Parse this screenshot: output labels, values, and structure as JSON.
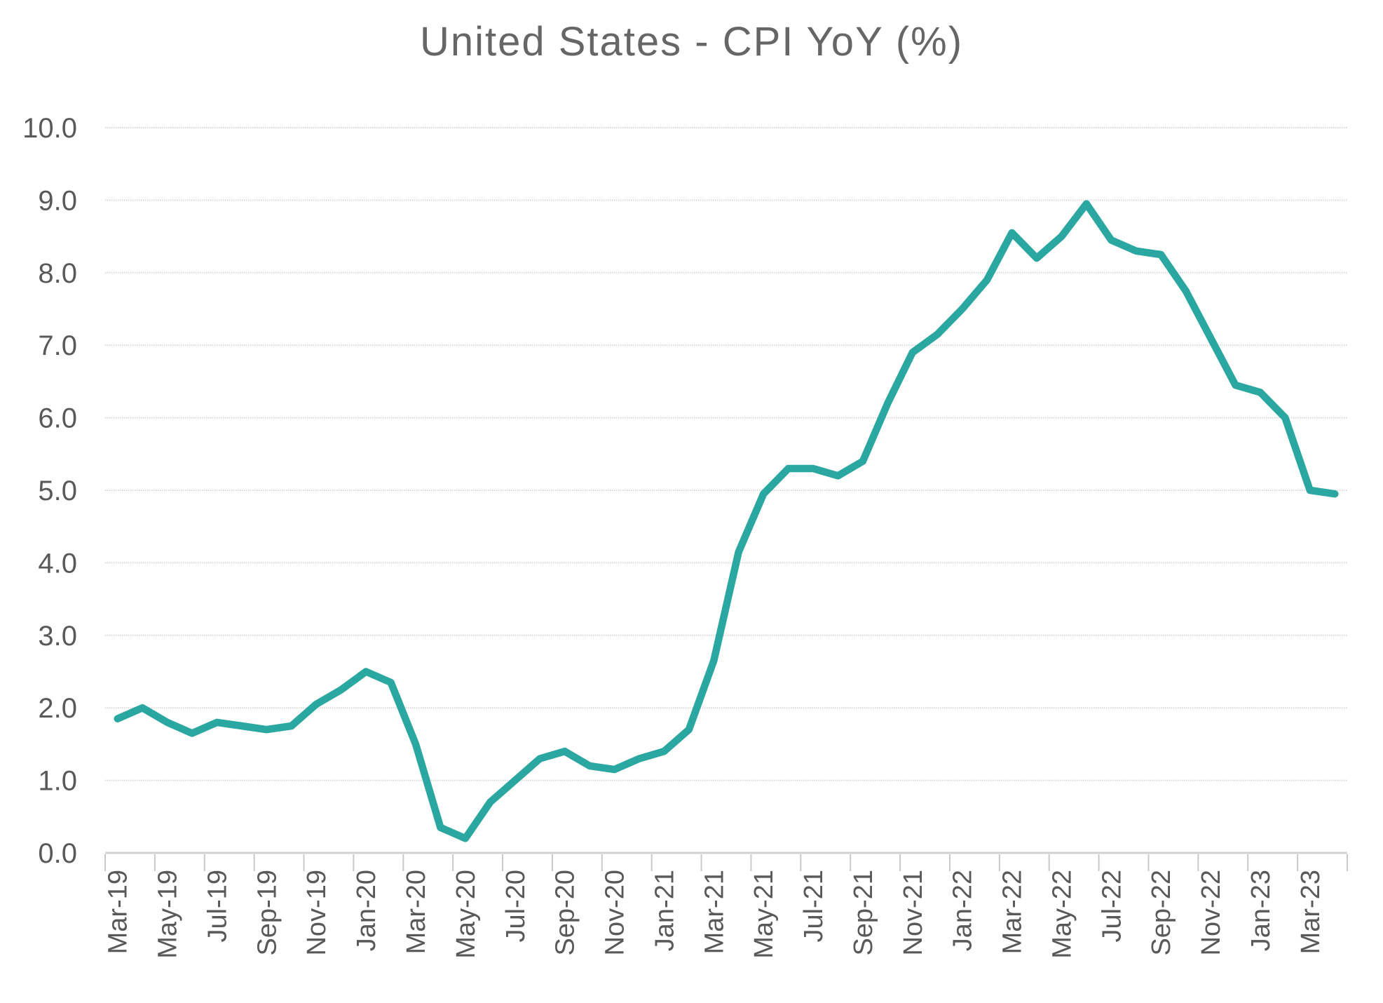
{
  "chart_data": {
    "type": "line",
    "title": "United States - CPI YoY (%)",
    "xlabel": "",
    "ylabel": "",
    "ylim": [
      0,
      10
    ],
    "grid": "horizontal-dotted",
    "legend": "none",
    "y_ticks": [
      0,
      1,
      2,
      3,
      4,
      5,
      6,
      7,
      8,
      9,
      10
    ],
    "y_tick_labels": [
      "0.0",
      "1.0",
      "2.0",
      "3.0",
      "4.0",
      "5.0",
      "6.0",
      "7.0",
      "8.0",
      "9.0",
      "10.0"
    ],
    "x_tick_labels": [
      "Mar-19",
      "May-19",
      "Jul-19",
      "Sep-19",
      "Nov-19",
      "Jan-20",
      "Mar-20",
      "May-20",
      "Jul-20",
      "Sep-20",
      "Nov-20",
      "Jan-21",
      "Mar-21",
      "May-21",
      "Jul-21",
      "Sep-21",
      "Nov-21",
      "Jan-22",
      "Mar-22",
      "May-22",
      "Jul-22",
      "Sep-22",
      "Nov-22",
      "Jan-23",
      "Mar-23"
    ],
    "categories": [
      "Mar-19",
      "Apr-19",
      "May-19",
      "Jun-19",
      "Jul-19",
      "Aug-19",
      "Sep-19",
      "Oct-19",
      "Nov-19",
      "Dec-19",
      "Jan-20",
      "Feb-20",
      "Mar-20",
      "Apr-20",
      "May-20",
      "Jun-20",
      "Jul-20",
      "Aug-20",
      "Sep-20",
      "Oct-20",
      "Nov-20",
      "Dec-20",
      "Jan-21",
      "Feb-21",
      "Mar-21",
      "Apr-21",
      "May-21",
      "Jun-21",
      "Jul-21",
      "Aug-21",
      "Sep-21",
      "Oct-21",
      "Nov-21",
      "Dec-21",
      "Jan-22",
      "Feb-22",
      "Mar-22",
      "Apr-22",
      "May-22",
      "Jun-22",
      "Jul-22",
      "Aug-22",
      "Sep-22",
      "Oct-22",
      "Nov-22",
      "Dec-22",
      "Jan-23",
      "Feb-23",
      "Mar-23",
      "Apr-23"
    ],
    "series": [
      {
        "name": "United States CPI YoY (%)",
        "values": [
          1.85,
          2.0,
          1.8,
          1.65,
          1.8,
          1.75,
          1.7,
          1.75,
          2.05,
          2.25,
          2.5,
          2.35,
          1.5,
          0.35,
          0.2,
          0.7,
          1.0,
          1.3,
          1.4,
          1.2,
          1.15,
          1.3,
          1.4,
          1.7,
          2.65,
          4.15,
          4.95,
          5.3,
          5.3,
          5.2,
          5.4,
          6.2,
          6.9,
          7.15,
          7.5,
          7.9,
          8.55,
          8.2,
          8.5,
          8.95,
          8.45,
          8.3,
          8.25,
          7.75,
          7.1,
          6.45,
          6.35,
          6.0,
          5.0,
          4.95
        ]
      }
    ],
    "colors": {
      "line": "#2AA7A0",
      "gridline": "#d8d8d8",
      "axis_line": "#d2d2d2",
      "tick": "#c9c9c9",
      "axis_label": "#595959",
      "title": "#666666",
      "background": "#ffffff"
    }
  }
}
